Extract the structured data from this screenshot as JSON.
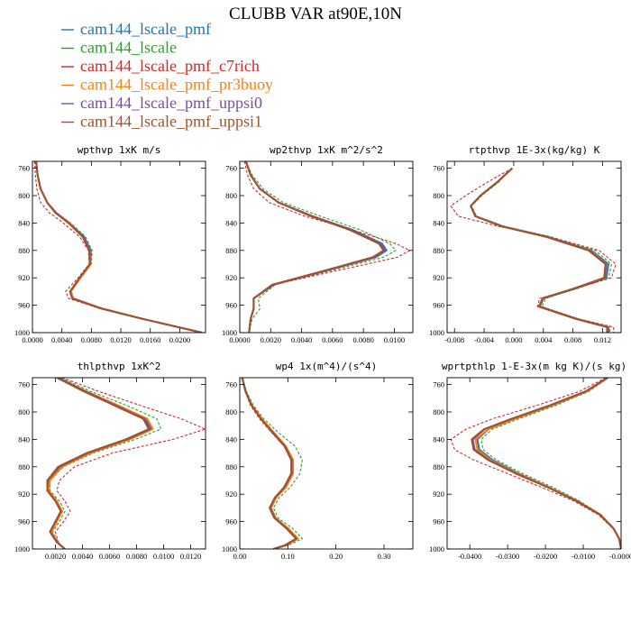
{
  "figure": {
    "title": "CLUBB VAR at90E,10N"
  },
  "legend": [
    {
      "name": "cam144_lscale_pmf",
      "color": "#1f77b4"
    },
    {
      "name": "cam144_lscale",
      "color": "#2ca02c"
    },
    {
      "name": "cam144_lscale_pmf_c7rich",
      "color": "#d62728"
    },
    {
      "name": "cam144_lscale_pmf_pr3buoy",
      "color": "#ff7f0e"
    },
    {
      "name": "cam144_lscale_pmf_uppsi0",
      "color": "#7b4fa0"
    },
    {
      "name": "cam144_lscale_pmf_uppsi1",
      "color": "#a0522d"
    }
  ],
  "chart_data": [
    {
      "type": "line",
      "title": "wpthvp  1xK m/s",
      "xlim": [
        0,
        0.0235
      ],
      "ylim": [
        1000,
        750
      ],
      "xticks": [
        0.0,
        0.004,
        0.008,
        0.012,
        0.016,
        0.02
      ],
      "xtick_labels": [
        "0.0000",
        "0.0040",
        "0.0080",
        "0.0120",
        "0.0160",
        "0.0200"
      ],
      "yticks": [
        760,
        800,
        840,
        880,
        920,
        960,
        1000
      ],
      "y": [
        750,
        770,
        790,
        810,
        825,
        840,
        860,
        880,
        900,
        920,
        940,
        950,
        965,
        980,
        1000
      ],
      "series": [
        {
          "name": "cam144_lscale_pmf",
          "values": [
            0.0005,
            0.0007,
            0.0011,
            0.002,
            0.0032,
            0.005,
            0.007,
            0.0079,
            0.0079,
            0.0065,
            0.0052,
            0.0055,
            0.0095,
            0.015,
            0.023
          ]
        },
        {
          "name": "cam144_lscale",
          "values": [
            0.0005,
            0.0007,
            0.0011,
            0.002,
            0.0033,
            0.0052,
            0.0072,
            0.0081,
            0.008,
            0.0066,
            0.0053,
            0.0056,
            0.0095,
            0.015,
            0.023
          ]
        },
        {
          "name": "cam144_lscale_pmf_c7rich",
          "values": [
            0.0003,
            0.0004,
            0.0006,
            0.0011,
            0.0023,
            0.0042,
            0.0064,
            0.0076,
            0.0077,
            0.0062,
            0.0045,
            0.0049,
            0.0092,
            0.015,
            0.023
          ]
        },
        {
          "name": "cam144_lscale_pmf_pr3buoy",
          "values": [
            0.0005,
            0.0007,
            0.0011,
            0.002,
            0.0032,
            0.005,
            0.0069,
            0.0078,
            0.0079,
            0.0065,
            0.0052,
            0.0055,
            0.0095,
            0.015,
            0.023
          ]
        },
        {
          "name": "cam144_lscale_pmf_uppsi0",
          "values": [
            0.0005,
            0.0007,
            0.0011,
            0.002,
            0.0032,
            0.0049,
            0.0069,
            0.0078,
            0.0078,
            0.0064,
            0.0051,
            0.0054,
            0.0094,
            0.015,
            0.023
          ]
        },
        {
          "name": "cam144_lscale_pmf_uppsi1",
          "values": [
            0.0005,
            0.0007,
            0.0011,
            0.002,
            0.0031,
            0.0049,
            0.0068,
            0.0077,
            0.0078,
            0.0064,
            0.0051,
            0.0054,
            0.0094,
            0.015,
            0.023
          ]
        }
      ]
    },
    {
      "type": "line",
      "title": "wp2thvp  1xK m^2/s^2",
      "xlim": [
        0,
        0.0112
      ],
      "ylim": [
        1000,
        750
      ],
      "xticks": [
        0.0,
        0.002,
        0.004,
        0.006,
        0.008,
        0.01
      ],
      "xtick_labels": [
        "0.0000",
        "0.0020",
        "0.0040",
        "0.0060",
        "0.0080",
        "0.0100"
      ],
      "yticks": [
        760,
        800,
        840,
        880,
        920,
        960,
        1000
      ],
      "y": [
        750,
        770,
        790,
        810,
        830,
        850,
        870,
        880,
        890,
        910,
        930,
        950,
        965,
        980,
        1000
      ],
      "series": [
        {
          "name": "cam144_lscale_pmf",
          "values": [
            0.0004,
            0.0007,
            0.0013,
            0.0025,
            0.0047,
            0.0073,
            0.0092,
            0.0095,
            0.0088,
            0.0055,
            0.0022,
            0.0009,
            0.0009,
            0.0007,
            0.0006
          ]
        },
        {
          "name": "cam144_lscale",
          "values": [
            0.0004,
            0.0008,
            0.0015,
            0.0028,
            0.0052,
            0.0078,
            0.0097,
            0.0101,
            0.0093,
            0.0058,
            0.0023,
            0.0012,
            0.0013,
            0.0008,
            0.0006
          ]
        },
        {
          "name": "cam144_lscale_pmf_c7rich",
          "values": [
            0.0003,
            0.0005,
            0.0009,
            0.0019,
            0.0042,
            0.0073,
            0.0101,
            0.011,
            0.0102,
            0.0062,
            0.0022,
            0.0009,
            0.0009,
            0.0007,
            0.0006
          ]
        },
        {
          "name": "cam144_lscale_pmf_pr3buoy",
          "values": [
            0.0004,
            0.0007,
            0.0013,
            0.0025,
            0.0047,
            0.0072,
            0.0091,
            0.0094,
            0.0087,
            0.0055,
            0.0022,
            0.0009,
            0.0009,
            0.0007,
            0.0006
          ]
        },
        {
          "name": "cam144_lscale_pmf_uppsi0",
          "values": [
            0.0004,
            0.0007,
            0.0013,
            0.0025,
            0.0047,
            0.0072,
            0.0091,
            0.0094,
            0.0087,
            0.0055,
            0.0022,
            0.0009,
            0.0009,
            0.0007,
            0.0006
          ]
        },
        {
          "name": "cam144_lscale_pmf_uppsi1",
          "values": [
            0.0004,
            0.0007,
            0.0013,
            0.0025,
            0.0046,
            0.0071,
            0.009,
            0.0093,
            0.0086,
            0.0054,
            0.0021,
            0.0009,
            0.0009,
            0.0007,
            0.0006
          ]
        }
      ]
    },
    {
      "type": "line",
      "title": "rtpthvp  1E-3x(kg/kg) K",
      "xlim": [
        -0.009,
        0.0145
      ],
      "ylim": [
        1000,
        750
      ],
      "xticks": [
        -0.008,
        -0.004,
        0.0,
        0.004,
        0.008,
        0.012
      ],
      "xtick_labels": [
        "-0.008",
        "-0.004",
        "0.000",
        "0.004",
        "0.008",
        "0.012"
      ],
      "yticks": [
        760,
        800,
        840,
        880,
        920,
        960,
        1000
      ],
      "y": [
        760,
        780,
        800,
        815,
        830,
        845,
        860,
        880,
        900,
        920,
        935,
        950,
        962,
        980,
        992,
        1000
      ],
      "series": [
        {
          "name": "cam144_lscale_pmf",
          "values": [
            -0.0002,
            -0.0022,
            -0.0045,
            -0.0058,
            -0.0052,
            -0.0015,
            0.0045,
            0.0105,
            0.0128,
            0.0125,
            0.0085,
            0.004,
            0.0035,
            0.0085,
            0.0128,
            0.0128
          ]
        },
        {
          "name": "cam144_lscale",
          "values": [
            -0.0002,
            -0.002,
            -0.0043,
            -0.0057,
            -0.005,
            -0.0012,
            0.005,
            0.011,
            0.0132,
            0.0128,
            0.0088,
            0.0043,
            0.0038,
            0.0088,
            0.013,
            0.013
          ]
        },
        {
          "name": "cam144_lscale_pmf_c7rich",
          "values": [
            -0.0002,
            -0.0035,
            -0.0065,
            -0.0085,
            -0.0075,
            -0.002,
            0.0048,
            0.0115,
            0.0138,
            0.0132,
            0.0085,
            0.0035,
            0.0032,
            0.0088,
            0.0135,
            0.0135
          ]
        },
        {
          "name": "cam144_lscale_pmf_pr3buoy",
          "values": [
            -0.0002,
            -0.0022,
            -0.0045,
            -0.0058,
            -0.0052,
            -0.0015,
            0.0045,
            0.0103,
            0.0126,
            0.0123,
            0.0083,
            0.0039,
            0.0034,
            0.0084,
            0.0127,
            0.0127
          ]
        },
        {
          "name": "cam144_lscale_pmf_uppsi0",
          "values": [
            -0.0002,
            -0.0022,
            -0.0045,
            -0.0058,
            -0.0052,
            -0.0015,
            0.0045,
            0.0102,
            0.0125,
            0.0123,
            0.0084,
            0.004,
            0.0035,
            0.0085,
            0.0127,
            0.0127
          ]
        },
        {
          "name": "cam144_lscale_pmf_uppsi1",
          "values": [
            -0.0002,
            -0.0022,
            -0.0045,
            -0.0058,
            -0.0052,
            -0.0016,
            0.0043,
            0.0101,
            0.0124,
            0.0122,
            0.0083,
            0.0039,
            0.0034,
            0.0084,
            0.0126,
            0.0126
          ]
        }
      ]
    },
    {
      "type": "line",
      "title": "thlpthvp  1xK^2",
      "xlim": [
        0.0003,
        0.0131
      ],
      "ylim": [
        1000,
        750
      ],
      "xticks": [
        0.002,
        0.004,
        0.006,
        0.008,
        0.01,
        0.012
      ],
      "xtick_labels": [
        "0.0020",
        "0.0040",
        "0.0060",
        "0.0080",
        "0.0100",
        "0.0120"
      ],
      "yticks": [
        760,
        800,
        840,
        880,
        920,
        960,
        1000
      ],
      "y": [
        750,
        770,
        790,
        810,
        825,
        840,
        860,
        880,
        900,
        915,
        930,
        945,
        960,
        975,
        990,
        1000
      ],
      "series": [
        {
          "name": "cam144_lscale_pmf",
          "values": [
            0.0022,
            0.0042,
            0.0065,
            0.0087,
            0.0091,
            0.0074,
            0.0045,
            0.0024,
            0.0015,
            0.0015,
            0.0021,
            0.0025,
            0.0021,
            0.0017,
            0.0021,
            0.0027
          ]
        },
        {
          "name": "cam144_lscale",
          "values": [
            0.0024,
            0.0046,
            0.0072,
            0.0095,
            0.0098,
            0.0079,
            0.0048,
            0.0026,
            0.0016,
            0.0016,
            0.0023,
            0.0027,
            0.0023,
            0.0018,
            0.0022,
            0.0027
          ]
        },
        {
          "name": "cam144_lscale_pmf_c7rich",
          "values": [
            0.0025,
            0.0052,
            0.0082,
            0.0113,
            0.0131,
            0.0107,
            0.0062,
            0.0034,
            0.0023,
            0.0021,
            0.0027,
            0.0031,
            0.0026,
            0.002,
            0.0022,
            0.0027
          ]
        },
        {
          "name": "cam144_lscale_pmf_pr3buoy",
          "values": [
            0.0022,
            0.0043,
            0.0066,
            0.0088,
            0.0092,
            0.0075,
            0.0046,
            0.0025,
            0.0016,
            0.0015,
            0.0021,
            0.0025,
            0.0021,
            0.0017,
            0.0021,
            0.0027
          ]
        },
        {
          "name": "cam144_lscale_pmf_uppsi0",
          "values": [
            0.0022,
            0.0042,
            0.0064,
            0.0086,
            0.009,
            0.0073,
            0.0044,
            0.0023,
            0.0014,
            0.0014,
            0.002,
            0.0024,
            0.002,
            0.0016,
            0.0021,
            0.0027
          ]
        },
        {
          "name": "cam144_lscale_pmf_uppsi1",
          "values": [
            0.0021,
            0.0041,
            0.0063,
            0.0085,
            0.0089,
            0.0072,
            0.0043,
            0.0022,
            0.0014,
            0.0014,
            0.002,
            0.0024,
            0.002,
            0.0016,
            0.0021,
            0.0027
          ]
        }
      ]
    },
    {
      "type": "line",
      "title": "wp4  1x(m^4)/(s^4)",
      "xlim": [
        0,
        0.36
      ],
      "ylim": [
        1000,
        750
      ],
      "xticks": [
        0.0,
        0.1,
        0.2,
        0.3
      ],
      "xtick_labels": [
        "0.00",
        "0.10",
        "0.20",
        "0.30"
      ],
      "yticks": [
        760,
        800,
        840,
        880,
        920,
        960,
        1000
      ],
      "y": [
        750,
        770,
        790,
        810,
        830,
        850,
        870,
        890,
        910,
        925,
        940,
        955,
        970,
        985,
        995,
        1000
      ],
      "series": [
        {
          "name": "cam144_lscale_pmf",
          "values": [
            0.005,
            0.012,
            0.025,
            0.045,
            0.07,
            0.095,
            0.11,
            0.11,
            0.095,
            0.075,
            0.065,
            0.075,
            0.1,
            0.12,
            0.095,
            0.07
          ]
        },
        {
          "name": "cam144_lscale",
          "values": [
            0.006,
            0.014,
            0.028,
            0.05,
            0.08,
            0.115,
            0.13,
            0.125,
            0.105,
            0.082,
            0.07,
            0.08,
            0.11,
            0.13,
            0.1,
            0.07
          ]
        },
        {
          "name": "cam144_lscale_pmf_c7rich",
          "values": [
            0.005,
            0.011,
            0.022,
            0.041,
            0.066,
            0.092,
            0.108,
            0.108,
            0.094,
            0.074,
            0.062,
            0.072,
            0.098,
            0.118,
            0.093,
            0.07
          ]
        },
        {
          "name": "cam144_lscale_pmf_pr3buoy",
          "values": [
            0.005,
            0.012,
            0.025,
            0.046,
            0.071,
            0.096,
            0.111,
            0.111,
            0.096,
            0.076,
            0.065,
            0.075,
            0.101,
            0.121,
            0.095,
            0.07
          ]
        },
        {
          "name": "cam144_lscale_pmf_uppsi0",
          "values": [
            0.005,
            0.012,
            0.024,
            0.044,
            0.069,
            0.094,
            0.108,
            0.108,
            0.093,
            0.073,
            0.063,
            0.073,
            0.098,
            0.118,
            0.093,
            0.07
          ]
        },
        {
          "name": "cam144_lscale_pmf_uppsi1",
          "values": [
            0.005,
            0.012,
            0.024,
            0.044,
            0.068,
            0.093,
            0.107,
            0.107,
            0.092,
            0.073,
            0.062,
            0.072,
            0.097,
            0.117,
            0.092,
            0.07
          ]
        }
      ]
    },
    {
      "type": "line",
      "title": "wprtpthlp  1-E-3x(m kg K)/(s kg)",
      "xlim": [
        -0.046,
        0.0
      ],
      "ylim": [
        1000,
        750
      ],
      "xticks": [
        -0.04,
        -0.03,
        -0.02,
        -0.01,
        0.0
      ],
      "xtick_labels": [
        "-0.0400",
        "-0.0300",
        "-0.0200",
        "-0.0100",
        "-0.0000"
      ],
      "yticks": [
        760,
        800,
        840,
        880,
        920,
        960,
        1000
      ],
      "y": [
        750,
        770,
        790,
        810,
        825,
        840,
        855,
        870,
        890,
        910,
        930,
        950,
        970,
        985,
        1000
      ],
      "series": [
        {
          "name": "cam144_lscale_pmf",
          "values": [
            -0.0035,
            -0.009,
            -0.018,
            -0.028,
            -0.035,
            -0.038,
            -0.0375,
            -0.034,
            -0.027,
            -0.019,
            -0.0115,
            -0.0055,
            -0.002,
            -0.0005,
            0.0
          ]
        },
        {
          "name": "cam144_lscale",
          "values": [
            -0.0033,
            -0.0085,
            -0.017,
            -0.027,
            -0.034,
            -0.037,
            -0.0365,
            -0.033,
            -0.026,
            -0.018,
            -0.011,
            -0.0052,
            -0.0019,
            -0.0005,
            0.0
          ]
        },
        {
          "name": "cam144_lscale_pmf_c7rich",
          "values": [
            -0.004,
            -0.011,
            -0.022,
            -0.034,
            -0.041,
            -0.045,
            -0.044,
            -0.039,
            -0.03,
            -0.021,
            -0.0125,
            -0.006,
            -0.0022,
            -0.0005,
            0.0
          ]
        },
        {
          "name": "cam144_lscale_pmf_pr3buoy",
          "values": [
            -0.0035,
            -0.009,
            -0.018,
            -0.028,
            -0.035,
            -0.0385,
            -0.038,
            -0.0345,
            -0.0272,
            -0.019,
            -0.0116,
            -0.0055,
            -0.002,
            -0.0005,
            0.0
          ]
        },
        {
          "name": "cam144_lscale_pmf_uppsi0",
          "values": [
            -0.0036,
            -0.0093,
            -0.0185,
            -0.0288,
            -0.036,
            -0.0392,
            -0.0387,
            -0.035,
            -0.0276,
            -0.0193,
            -0.0118,
            -0.0056,
            -0.002,
            -0.0005,
            0.0
          ]
        },
        {
          "name": "cam144_lscale_pmf_uppsi1",
          "values": [
            -0.0036,
            -0.0094,
            -0.0187,
            -0.029,
            -0.0362,
            -0.0395,
            -0.039,
            -0.0352,
            -0.0278,
            -0.0194,
            -0.0118,
            -0.0056,
            -0.002,
            -0.0005,
            0.0
          ]
        }
      ]
    }
  ]
}
